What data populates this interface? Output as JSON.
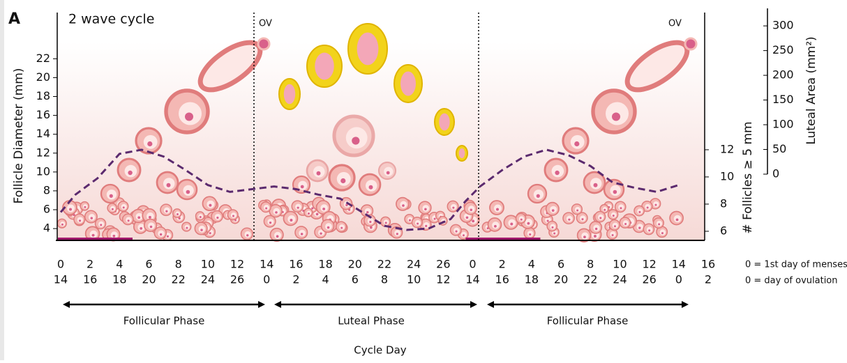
{
  "chart_data": {
    "type": "line",
    "panel_label": "A",
    "title": "2 wave cycle",
    "ylabel": "Follicle Diameter (mm)",
    "ylim": [
      2.75,
      26.9
    ],
    "yticks": [
      4,
      6,
      8,
      10,
      12,
      14,
      16,
      18,
      20,
      22
    ],
    "y2label": "# Follicles ≥ 5 mm",
    "y2lim": [
      5.33,
      22.1
    ],
    "y2ticks": [
      6,
      8,
      10,
      12
    ],
    "y3label": "Luteal Area (mm²)",
    "y3lim": [
      -134,
      327
    ],
    "y3ticks": [
      0,
      50,
      100,
      150,
      200,
      250,
      300
    ],
    "xlim": [
      -0.33,
      44
    ],
    "xticks": [
      {
        "value": 0,
        "label": "0"
      },
      2,
      4,
      6,
      8,
      10,
      12,
      14,
      16,
      18,
      20,
      22,
      24,
      26,
      {
        "value": 28,
        "label": "0"
      },
      {
        "value": 30,
        "label": "2"
      },
      {
        "value": 32,
        "label": "4"
      },
      {
        "value": 34,
        "label": "6"
      },
      {
        "value": 36,
        "label": "8"
      },
      {
        "value": 38,
        "label": "10"
      },
      {
        "value": 40,
        "label": "12"
      },
      {
        "value": 42,
        "label": "14"
      },
      {
        "value": 44,
        "label": "16"
      }
    ],
    "xticks2": [
      {
        "value": 0,
        "label": "14"
      },
      {
        "value": 2,
        "label": "16"
      },
      {
        "value": 4,
        "label": "18"
      },
      {
        "value": 6,
        "label": "20"
      },
      {
        "value": 8,
        "label": "22"
      },
      {
        "value": 10,
        "label": "24"
      },
      {
        "value": 12,
        "label": "26"
      },
      {
        "value": 14,
        "label": "0"
      },
      {
        "value": 16,
        "label": "2"
      },
      {
        "value": 18,
        "label": "4"
      },
      {
        "value": 20,
        "label": "6"
      },
      {
        "value": 22,
        "label": "8"
      },
      {
        "value": 24,
        "label": "10"
      },
      {
        "value": 26,
        "label": "12"
      },
      {
        "value": 28,
        "label": "14"
      },
      {
        "value": 30,
        "label": "16"
      },
      {
        "value": 32,
        "label": "18"
      },
      {
        "value": 34,
        "label": "20"
      },
      {
        "value": 36,
        "label": "22"
      },
      {
        "value": 38,
        "label": "24"
      },
      {
        "value": 40,
        "label": "26"
      },
      {
        "value": 42,
        "label": "0"
      },
      {
        "value": 44,
        "label": "2"
      }
    ],
    "series": [
      {
        "name": "# Follicles ≥ 5 mm",
        "axis": "y2",
        "color": "#5b2a6e",
        "x": [
          0,
          1,
          2.5,
          4,
          5.5,
          7,
          8.5,
          10,
          11.5,
          13,
          14.5,
          16,
          17.5,
          19,
          20.5,
          22,
          23.5,
          25,
          26.5,
          27.5,
          28.5,
          30,
          31.5,
          33,
          34.5,
          36,
          37.5,
          39,
          40.5,
          42
        ],
        "values": [
          7.4,
          8.7,
          9.9,
          11.7,
          12.0,
          11.5,
          10.5,
          9.4,
          8.9,
          9.1,
          9.3,
          9.1,
          8.7,
          8.4,
          7.4,
          6.4,
          6.1,
          6.2,
          6.9,
          8.2,
          9.3,
          10.5,
          11.5,
          12.0,
          11.6,
          10.8,
          9.6,
          9.2,
          8.9,
          9.4
        ]
      }
    ],
    "annotations": [
      "OV",
      "OV"
    ],
    "phases": [
      "Follicular Phase",
      "Luteal Phase",
      "Follicular Phase"
    ],
    "xlabel": "Cycle Day",
    "notes": [
      "0 = 1st day of menses",
      "0 = day of ovulation"
    ]
  }
}
